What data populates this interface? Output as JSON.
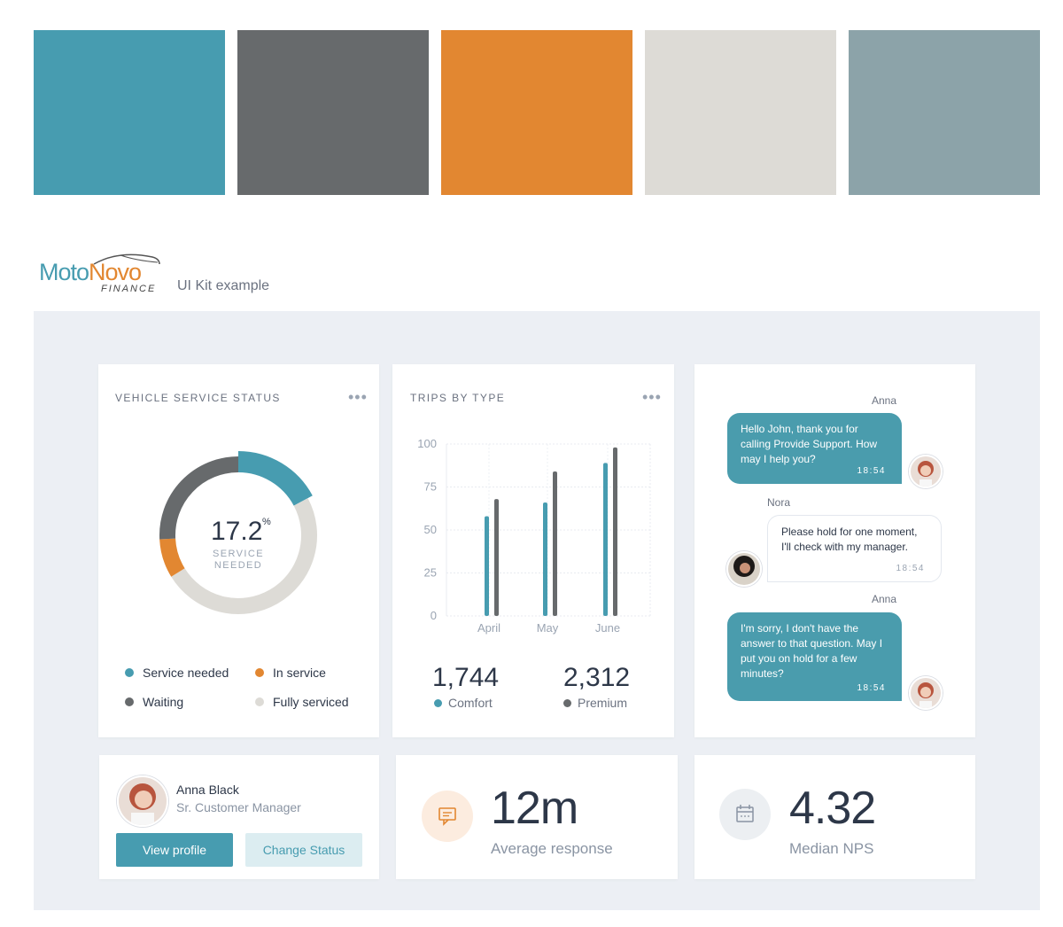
{
  "palette": [
    "#479cb0",
    "#676a6c",
    "#e28731",
    "#dddbd6",
    "#8ca3a9"
  ],
  "brand": {
    "name_part1": "Moto",
    "name_part2": "Novo",
    "subtitle": "FINANCE",
    "tagline": "UI Kit example"
  },
  "vehicle_status": {
    "title": "VEHICLE SERVICE STATUS",
    "menu_icon": "more-icon",
    "center_value": "17.2",
    "center_unit": "%",
    "center_caption_line1": "SERVICE",
    "center_caption_line2": "NEEDED",
    "legend": [
      {
        "label": "Service needed",
        "color": "#479cb0"
      },
      {
        "label": "In service",
        "color": "#e28731"
      },
      {
        "label": "Waiting",
        "color": "#676a6c"
      },
      {
        "label": "Fully serviced",
        "color": "#dddbd6"
      }
    ]
  },
  "chart_data": {
    "type": "bar",
    "title": "TRIPS BY TYPE",
    "categories": [
      "April",
      "May",
      "June"
    ],
    "series": [
      {
        "name": "Comfort",
        "color": "#479cb0",
        "values": [
          58,
          66,
          89
        ]
      },
      {
        "name": "Premium",
        "color": "#676a6c",
        "values": [
          68,
          84,
          98
        ]
      }
    ],
    "yticks": [
      "100",
      "75",
      "50",
      "25",
      "0"
    ],
    "ylim": [
      0,
      100
    ],
    "grid": true
  },
  "donut_data": {
    "type": "pie",
    "segments": [
      {
        "name": "Service needed",
        "value": 17.2,
        "color": "#479cb0"
      },
      {
        "name": "Fully serviced",
        "value": 49,
        "color": "#dddbd6"
      },
      {
        "name": "In service",
        "value": 8,
        "color": "#e28731"
      },
      {
        "name": "Waiting",
        "value": 25.8,
        "color": "#676a6c"
      }
    ]
  },
  "trips_stats": {
    "comfort_value": "1,744",
    "comfort_label": "Comfort",
    "premium_value": "2,312",
    "premium_label": "Premium"
  },
  "chat": {
    "messages": [
      {
        "sender": "Anna",
        "text": "Hello John, thank you for calling Provide Support. How may I help you?",
        "time": "18:54"
      },
      {
        "sender": "Nora",
        "text": "Please hold for one moment, I'll check with my manager.",
        "time": "18:54"
      },
      {
        "sender": "Anna",
        "text": "I'm sorry, I don't have the answer to that question. May I put you on hold for a few minutes?",
        "time": "18:54"
      }
    ]
  },
  "profile": {
    "name": "Anna Black",
    "role": "Sr. Customer Manager",
    "view_label": "View profile",
    "status_label": "Change Status"
  },
  "response": {
    "value": "12m",
    "label": "Average response",
    "icon": "chat-icon"
  },
  "nps": {
    "value": "4.32",
    "label": "Median NPS",
    "icon": "calendar-icon"
  }
}
